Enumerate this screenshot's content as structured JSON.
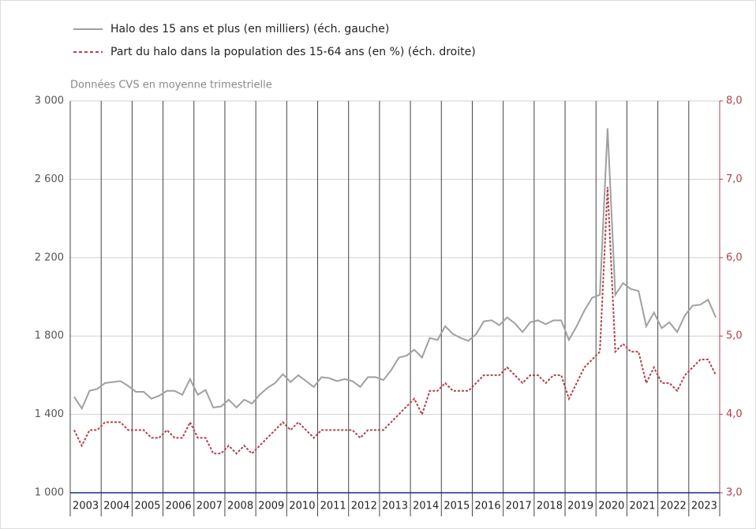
{
  "chart_data": {
    "type": "line",
    "subtitle": "Données CVS en moyenne trimestrielle",
    "categories": [
      "2003",
      null,
      null,
      null,
      "2004",
      null,
      null,
      null,
      "2005",
      null,
      null,
      null,
      "2006",
      null,
      null,
      null,
      "2007",
      null,
      null,
      null,
      "2008",
      null,
      null,
      null,
      "2009",
      null,
      null,
      null,
      "2010",
      null,
      null,
      null,
      "2011",
      null,
      null,
      null,
      "2012",
      null,
      null,
      null,
      "2013",
      null,
      null,
      null,
      "2014",
      null,
      null,
      null,
      "2015",
      null,
      null,
      null,
      "2016",
      null,
      null,
      null,
      "2017",
      null,
      null,
      null,
      "2018",
      null,
      null,
      null,
      "2019",
      null,
      null,
      null,
      "2020",
      null,
      null,
      null,
      "2021",
      null,
      null,
      null,
      "2022",
      null,
      null,
      null,
      "2023",
      null,
      null,
      null
    ],
    "series": [
      {
        "name": "Halo des 15 ans et plus (en milliers) (éch. gauche)",
        "color": "#a0a0a0",
        "dash": false,
        "values": [
          1490,
          1430,
          1520,
          1530,
          1560,
          1565,
          1570,
          1545,
          1515,
          1515,
          1480,
          1495,
          1520,
          1520,
          1500,
          1580,
          1500,
          1525,
          1435,
          1440,
          1475,
          1435,
          1475,
          1455,
          1500,
          1535,
          1560,
          1605,
          1565,
          1600,
          1570,
          1540,
          1590,
          1585,
          1570,
          1580,
          1570,
          1540,
          1590,
          1590,
          1575,
          1625,
          1690,
          1700,
          1730,
          1690,
          1790,
          1780,
          1850,
          1810,
          1790,
          1775,
          1810,
          1875,
          1880,
          1855,
          1895,
          1865,
          1820,
          1870,
          1880,
          1860,
          1880,
          1880,
          1780,
          1850,
          1930,
          1995,
          2010,
          2860,
          2010,
          2070,
          2040,
          2030,
          1850,
          1920,
          1840,
          1870,
          1820,
          1905,
          1955,
          1960,
          1985,
          1895
        ]
      },
      {
        "name": "Part du halo dans la population des 15-64 ans (en %) (éch. droite)",
        "color": "#b5414a",
        "dash": true,
        "axis": "y2",
        "values": [
          3.8,
          3.6,
          3.8,
          3.8,
          3.9,
          3.9,
          3.9,
          3.8,
          3.8,
          3.8,
          3.7,
          3.7,
          3.8,
          3.7,
          3.7,
          3.9,
          3.7,
          3.7,
          3.5,
          3.5,
          3.6,
          3.5,
          3.6,
          3.5,
          3.6,
          3.7,
          3.8,
          3.9,
          3.8,
          3.9,
          3.8,
          3.7,
          3.8,
          3.8,
          3.8,
          3.8,
          3.8,
          3.7,
          3.8,
          3.8,
          3.8,
          3.9,
          4.0,
          4.1,
          4.2,
          4.0,
          4.3,
          4.3,
          4.4,
          4.3,
          4.3,
          4.3,
          4.4,
          4.5,
          4.5,
          4.5,
          4.6,
          4.5,
          4.4,
          4.5,
          4.5,
          4.4,
          4.5,
          4.5,
          4.2,
          4.4,
          4.6,
          4.7,
          4.8,
          6.9,
          4.8,
          4.9,
          4.8,
          4.8,
          4.4,
          4.6,
          4.4,
          4.4,
          4.3,
          4.5,
          4.6,
          4.7,
          4.7,
          4.5
        ]
      }
    ],
    "ylim": [
      1000,
      3000
    ],
    "yticks": [
      {
        "value": 1000,
        "label": "1 000"
      },
      {
        "value": 1400,
        "label": "1 400"
      },
      {
        "value": 1800,
        "label": "1 800"
      },
      {
        "value": 2200,
        "label": "2 200"
      },
      {
        "value": 2600,
        "label": "2 600"
      },
      {
        "value": 3000,
        "label": "3 000"
      }
    ],
    "y2lim": [
      3,
      8
    ],
    "y2ticks": [
      {
        "value": 3,
        "label": "3,0"
      },
      {
        "value": 4,
        "label": "4,0"
      },
      {
        "value": 5,
        "label": "5,0"
      },
      {
        "value": 6,
        "label": "6,0"
      },
      {
        "value": 7,
        "label": "7,0"
      },
      {
        "value": 8,
        "label": "8,0"
      }
    ],
    "grid": true
  }
}
